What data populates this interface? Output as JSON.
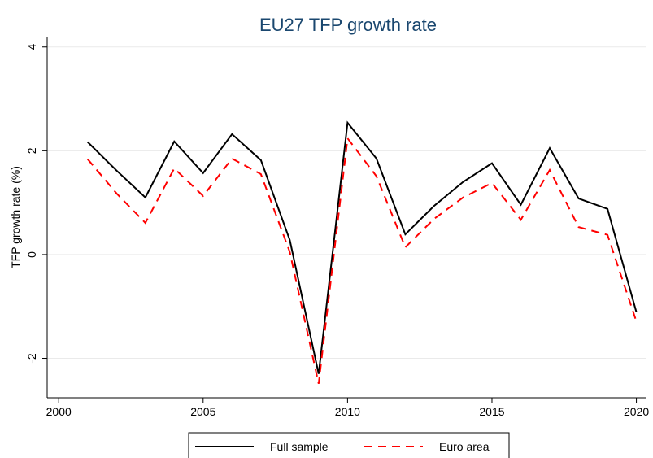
{
  "chart_data": {
    "type": "line",
    "title": "EU27 TFP growth rate",
    "y_label": "TFP growth rate (%)",
    "x": [
      2001,
      2002,
      2003,
      2004,
      2005,
      2006,
      2007,
      2008,
      2009,
      2010,
      2011,
      2012,
      2013,
      2014,
      2015,
      2016,
      2017,
      2018,
      2019,
      2020
    ],
    "series": [
      {
        "name": "Full sample",
        "color": "#000000",
        "dash": "solid",
        "values": [
          2.17,
          1.62,
          1.1,
          2.18,
          1.57,
          2.32,
          1.82,
          0.28,
          -2.3,
          2.54,
          1.85,
          0.39,
          0.94,
          1.4,
          1.76,
          0.96,
          2.05,
          1.08,
          0.88,
          -1.11
        ]
      },
      {
        "name": "Euro area",
        "color": "#ff0000",
        "dash": "dashed",
        "values": [
          1.84,
          1.18,
          0.61,
          1.66,
          1.13,
          1.85,
          1.55,
          0.05,
          -2.49,
          2.24,
          1.51,
          0.14,
          0.69,
          1.1,
          1.38,
          0.67,
          1.63,
          0.53,
          0.38,
          -1.29
        ]
      }
    ],
    "xlim": [
      1999.6,
      2020.35
    ],
    "xticks": [
      2000,
      2005,
      2010,
      2015,
      2020
    ],
    "ylim": [
      -2.76,
      4.2
    ],
    "yticks": [
      -2,
      0,
      2,
      4
    ],
    "grid": true,
    "legend": "bottom"
  }
}
